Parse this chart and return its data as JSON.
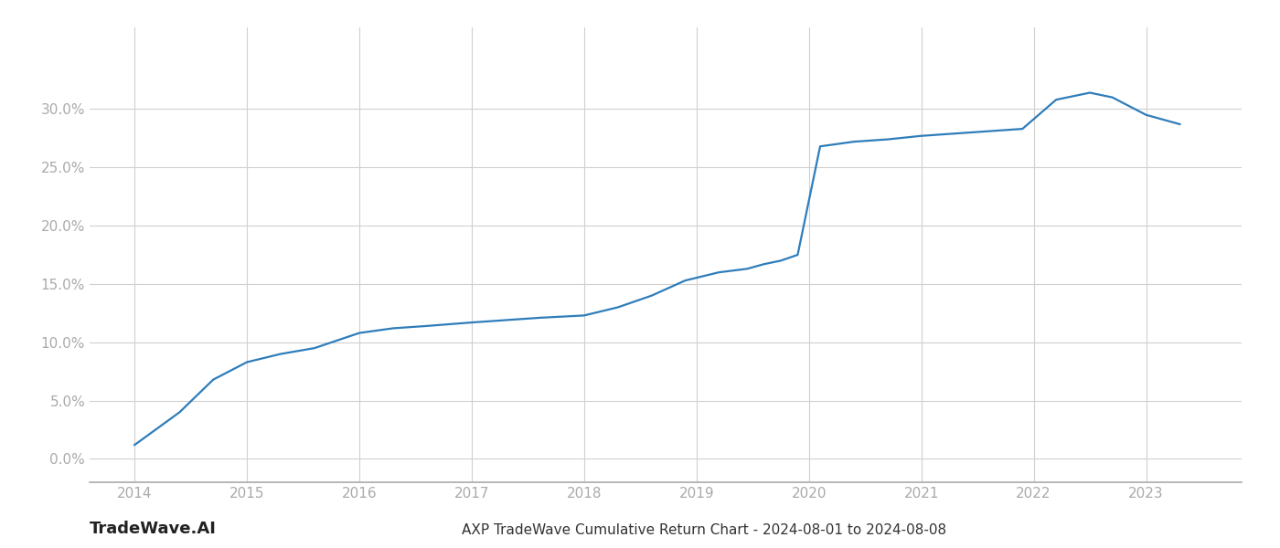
{
  "x_years": [
    2014.0,
    2014.4,
    2014.7,
    2015.0,
    2015.3,
    2015.6,
    2016.0,
    2016.3,
    2016.6,
    2017.0,
    2017.3,
    2017.6,
    2018.0,
    2018.3,
    2018.6,
    2018.9,
    2019.2,
    2019.45,
    2019.6,
    2019.75,
    2019.9,
    2020.1,
    2020.4,
    2020.7,
    2021.0,
    2021.3,
    2021.6,
    2021.9,
    2022.2,
    2022.5,
    2022.7,
    2023.0,
    2023.3
  ],
  "y_values": [
    0.012,
    0.04,
    0.068,
    0.083,
    0.09,
    0.095,
    0.108,
    0.112,
    0.114,
    0.117,
    0.119,
    0.121,
    0.123,
    0.13,
    0.14,
    0.153,
    0.16,
    0.163,
    0.167,
    0.17,
    0.175,
    0.268,
    0.272,
    0.274,
    0.277,
    0.279,
    0.281,
    0.283,
    0.308,
    0.314,
    0.31,
    0.295,
    0.287
  ],
  "line_color": "#2e7dba",
  "line_width": 1.6,
  "background_color": "#ffffff",
  "grid_color": "#d0d0d0",
  "title": "AXP TradeWave Cumulative Return Chart - 2024-08-01 to 2024-08-08",
  "watermark": "TradeWave.AI",
  "xlim": [
    2013.6,
    2023.85
  ],
  "ylim": [
    -0.02,
    0.37
  ],
  "yticks": [
    0.0,
    0.05,
    0.1,
    0.15,
    0.2,
    0.25,
    0.3
  ],
  "xticks": [
    2014,
    2015,
    2016,
    2017,
    2018,
    2019,
    2020,
    2021,
    2022,
    2023
  ],
  "title_fontsize": 11,
  "tick_fontsize": 11,
  "watermark_fontsize": 13,
  "axis_color": "#aaaaaa",
  "tick_color": "#aaaaaa",
  "title_color": "#333333",
  "watermark_color": "#222222"
}
